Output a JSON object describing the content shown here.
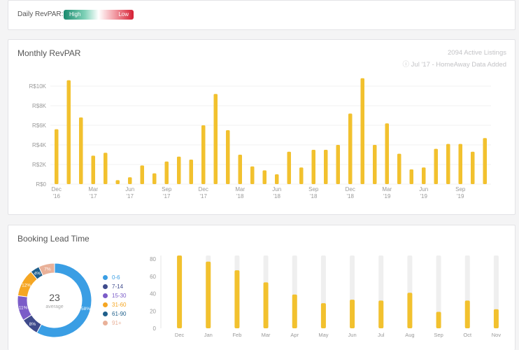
{
  "daily": {
    "label": "Daily RevPAR:",
    "legend_high": "High",
    "legend_low": "Low"
  },
  "monthly": {
    "title": "Monthly RevPAR",
    "active_listings": "2094 Active Listings",
    "data_note": "ⓘ Jul '17 - HomeAway Data Added"
  },
  "booking": {
    "title": "Booking Lead Time",
    "center_value": "23",
    "center_label": "average"
  },
  "colors": {
    "bar": "#f2c12e",
    "track": "#efefef",
    "grid": "#f1f1f1"
  },
  "chart_data": [
    {
      "type": "bar",
      "title": "Monthly RevPAR",
      "xlabel": "",
      "ylabel": "",
      "ylim": [
        0,
        11000
      ],
      "y_ticks": [
        0,
        2000,
        4000,
        6000,
        8000,
        10000
      ],
      "y_tick_labels": [
        "R$0",
        "R$2K",
        "R$4K",
        "R$6K",
        "R$8K",
        "R$10K"
      ],
      "categories": [
        "Dec '16",
        "Jan '17",
        "Feb '17",
        "Mar '17",
        "Apr '17",
        "May '17",
        "Jun '17",
        "Jul '17",
        "Aug '17",
        "Sep '17",
        "Oct '17",
        "Nov '17",
        "Dec '17",
        "Jan '18",
        "Feb '18",
        "Mar '18",
        "Apr '18",
        "May '18",
        "Jun '18",
        "Jul '18",
        "Aug '18",
        "Sep '18",
        "Oct '18",
        "Nov '18",
        "Dec '18",
        "Jan '19",
        "Feb '19",
        "Mar '19",
        "Apr '19",
        "May '19",
        "Jun '19",
        "Jul '19",
        "Aug '19",
        "Sep '19",
        "Oct '19",
        "Nov '19"
      ],
      "x_tick_labels": [
        {
          "index": 0,
          "month": "Dec",
          "year": "'16"
        },
        {
          "index": 3,
          "month": "Mar",
          "year": "'17"
        },
        {
          "index": 6,
          "month": "Jun",
          "year": "'17"
        },
        {
          "index": 9,
          "month": "Sep",
          "year": "'17"
        },
        {
          "index": 12,
          "month": "Dec",
          "year": "'17"
        },
        {
          "index": 15,
          "month": "Mar",
          "year": "'18"
        },
        {
          "index": 18,
          "month": "Jun",
          "year": "'18"
        },
        {
          "index": 21,
          "month": "Sep",
          "year": "'18"
        },
        {
          "index": 24,
          "month": "Dec",
          "year": "'18"
        },
        {
          "index": 27,
          "month": "Mar",
          "year": "'19"
        },
        {
          "index": 30,
          "month": "Jun",
          "year": "'19"
        },
        {
          "index": 33,
          "month": "Sep",
          "year": "'19"
        }
      ],
      "values": [
        5600,
        10600,
        6800,
        2900,
        3200,
        400,
        700,
        1900,
        1100,
        2300,
        2800,
        2500,
        6000,
        9200,
        5500,
        3000,
        1800,
        1400,
        1000,
        3300,
        1700,
        3500,
        3500,
        4000,
        7200,
        10800,
        4000,
        6200,
        3100,
        1500,
        1700,
        3600,
        4100,
        4100,
        3300,
        4700
      ]
    },
    {
      "type": "pie",
      "title": "Booking Lead Time",
      "labels": [
        "0-6",
        "7-14",
        "15-30",
        "31-60",
        "61-90",
        "91+"
      ],
      "values": [
        58,
        8,
        11,
        12,
        4,
        7
      ],
      "value_labels": [
        "58%",
        "8%",
        "11%",
        "12%",
        "4%",
        "7%"
      ],
      "colors": [
        "#3a9ee4",
        "#3f4b8c",
        "#7b5cc8",
        "#f5a623",
        "#1f5f8b",
        "#e9b199"
      ]
    },
    {
      "type": "bar",
      "title": "",
      "ylim": [
        0,
        80
      ],
      "y_ticks": [
        0,
        20,
        40,
        60,
        80
      ],
      "y_tick_labels": [
        "0",
        "20",
        "40",
        "60",
        "80"
      ],
      "track_value": 84,
      "categories": [
        "Dec",
        "Jan",
        "Feb",
        "Mar",
        "Apr",
        "May",
        "Jun",
        "Jul",
        "Aug",
        "Sep",
        "Oct",
        "Nov"
      ],
      "values": [
        84,
        77,
        67,
        53,
        39,
        29,
        33,
        32,
        41,
        19,
        32,
        22
      ]
    }
  ]
}
